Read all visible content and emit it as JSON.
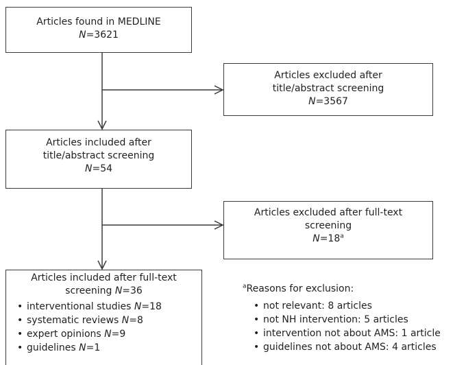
{
  "boxes": {
    "medline": {
      "label": "Articles found in MEDLINE",
      "n_prefix": "N",
      "n_value": "=3621"
    },
    "excluded_title": {
      "label_line1": "Articles excluded after",
      "label_line2": "title/abstract screening",
      "n_prefix": "N",
      "n_value": "=3567"
    },
    "included_title": {
      "label_line1": "Articles included after",
      "label_line2": "title/abstract screening",
      "n_prefix": "N",
      "n_value": "=54"
    },
    "excluded_full": {
      "label_line1": "Articles excluded after full-text",
      "label_line2": "screening",
      "n_prefix": "N",
      "n_value": "=18",
      "n_sup": "a"
    },
    "included_full": {
      "label_line1": "Articles included after full-text",
      "label_line2": "screening",
      "n_prefix": "N",
      "n_value": "=36",
      "items": [
        {
          "text": "interventional studies ",
          "n_prefix": "N",
          "n_value": "=18"
        },
        {
          "text": "systematic reviews ",
          "n_prefix": "N",
          "n_value": "=8"
        },
        {
          "text": "expert opinions ",
          "n_prefix": "N",
          "n_value": "=9"
        },
        {
          "text": "guidelines ",
          "n_prefix": "N",
          "n_value": "=1"
        }
      ]
    }
  },
  "footnote": {
    "marker": "a",
    "title": "Reasons for exclusion:",
    "items": [
      "not relevant: 8 articles",
      "not NH intervention: 5 articles",
      "intervention not about AMS: 1 article",
      "guidelines not about AMS: 4 articles"
    ]
  },
  "colors": {
    "line": "#3a3a3a",
    "text": "#1f1f1f"
  }
}
